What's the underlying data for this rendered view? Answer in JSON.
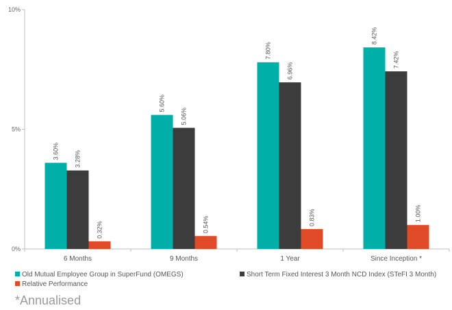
{
  "chart_data": {
    "type": "bar",
    "categories": [
      "6 Months",
      "9 Months",
      "1 Year",
      "Since Inception *"
    ],
    "series": [
      {
        "name": "Old Mutual Employee Group in SuperFund (OMEGS)",
        "values": [
          3.6,
          5.6,
          7.8,
          8.42
        ],
        "labels": [
          "3.60%",
          "5.60%",
          "7.80%",
          "8.42%"
        ],
        "color": "#00b0a8"
      },
      {
        "name": "Short Term Fixed Interest 3 Month NCD Index (STeFI 3 Month)",
        "values": [
          3.28,
          5.06,
          6.96,
          7.42
        ],
        "labels": [
          "3.28%",
          "5.06%",
          "6.96%",
          "7.42%"
        ],
        "color": "#3c3c3c"
      },
      {
        "name": "Relative Performance",
        "values": [
          0.32,
          0.54,
          0.83,
          1.0
        ],
        "labels": [
          "0.32%",
          "0.54%",
          "0.83%",
          "1.00%"
        ],
        "color": "#e04a26"
      }
    ],
    "ylim": [
      0,
      10
    ],
    "yticks": [
      0,
      5,
      10
    ],
    "ytick_labels": [
      "0%",
      "5%",
      "10%"
    ],
    "grid": false,
    "legend_position": "bottom"
  },
  "footnote": "*Annualised"
}
